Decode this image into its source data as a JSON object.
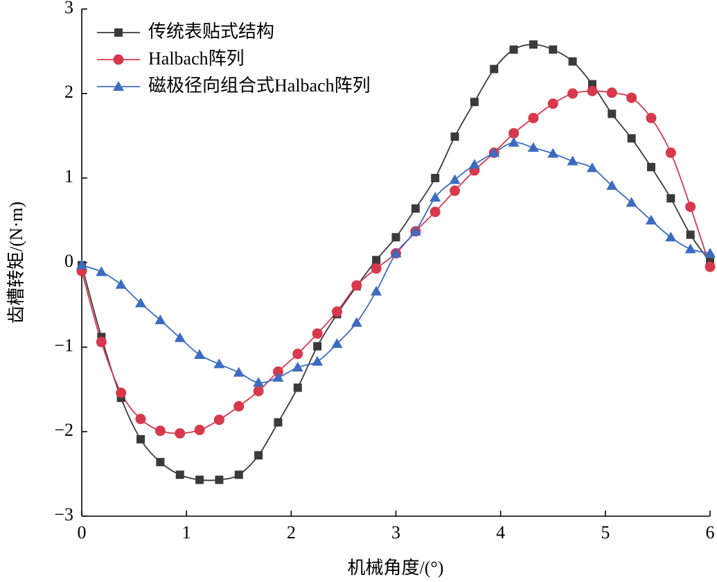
{
  "chart_data": {
    "type": "line",
    "x_label": "机械角度/(°)",
    "y_label": "齿槽转矩/(N·m)",
    "x": [
      0,
      0.1875,
      0.375,
      0.5625,
      0.75,
      0.9375,
      1.125,
      1.3125,
      1.5,
      1.6875,
      1.875,
      2.0625,
      2.25,
      2.4375,
      2.625,
      2.8125,
      3.0,
      3.1875,
      3.375,
      3.5625,
      3.75,
      3.9375,
      4.125,
      4.3125,
      4.5,
      4.6875,
      4.875,
      5.0625,
      5.25,
      5.4375,
      5.625,
      5.8125,
      6.0
    ],
    "series": [
      {
        "name": "传统表贴式结构",
        "color": "#3a3a3a",
        "marker": "square",
        "values": [
          -0.03,
          -0.88,
          -1.6,
          -2.09,
          -2.36,
          -2.51,
          -2.57,
          -2.57,
          -2.51,
          -2.28,
          -1.89,
          -1.48,
          -0.99,
          -0.61,
          -0.28,
          0.03,
          0.3,
          0.64,
          1.0,
          1.49,
          1.9,
          2.29,
          2.52,
          2.58,
          2.52,
          2.38,
          2.11,
          1.76,
          1.47,
          1.13,
          0.76,
          0.33,
          0.01
        ]
      },
      {
        "name": "Halbach阵列",
        "color": "#d8384b",
        "marker": "circle",
        "values": [
          -0.1,
          -0.94,
          -1.54,
          -1.85,
          -1.99,
          -2.02,
          -1.98,
          -1.86,
          -1.7,
          -1.52,
          -1.29,
          -1.08,
          -0.84,
          -0.58,
          -0.27,
          -0.07,
          0.11,
          0.37,
          0.6,
          0.85,
          1.09,
          1.3,
          1.53,
          1.71,
          1.88,
          2.0,
          2.03,
          2.01,
          1.95,
          1.71,
          1.3,
          0.66,
          -0.05
        ]
      },
      {
        "name": "磁极径向组合式Halbach阵列",
        "color": "#3b6cc0",
        "marker": "triangle",
        "values": [
          -0.03,
          -0.11,
          -0.26,
          -0.48,
          -0.68,
          -0.89,
          -1.09,
          -1.2,
          -1.3,
          -1.42,
          -1.36,
          -1.24,
          -1.17,
          -0.96,
          -0.71,
          -0.34,
          0.11,
          0.37,
          0.77,
          0.98,
          1.16,
          1.3,
          1.42,
          1.36,
          1.29,
          1.2,
          1.12,
          0.91,
          0.71,
          0.5,
          0.3,
          0.16,
          0.11
        ]
      }
    ],
    "xlim": [
      0,
      6
    ],
    "xticks": [
      0,
      1,
      2,
      3,
      4,
      5,
      6
    ],
    "ylim": [
      -3,
      3
    ],
    "yticks": [
      {
        "value": -3,
        "label": "−3"
      },
      {
        "value": -2,
        "label": "−2"
      },
      {
        "value": -1,
        "label": "−1"
      },
      0,
      1,
      2,
      3
    ],
    "legend": "upper-left",
    "grid": false
  }
}
